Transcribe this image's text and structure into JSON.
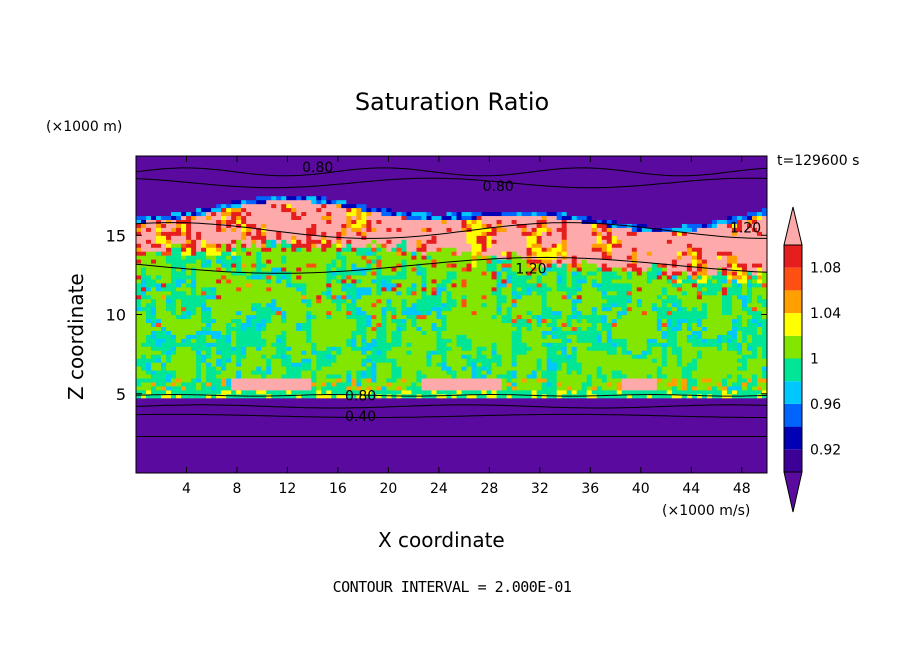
{
  "chart_data": {
    "type": "heatmap",
    "title": "Saturation Ratio",
    "xlabel": "X coordinate",
    "ylabel": "Z coordinate",
    "x_unit": "(×1000 m/s)",
    "y_unit": "(×1000 m)",
    "time_label": "t=129600 s",
    "footer": "CONTOUR INTERVAL = 2.000E-01",
    "xlim": [
      0,
      50
    ],
    "ylim": [
      0,
      20
    ],
    "x_ticks": [
      "4",
      "8",
      "12",
      "16",
      "20",
      "24",
      "28",
      "32",
      "36",
      "40",
      "44",
      "48"
    ],
    "x_tick_values": [
      4,
      8,
      12,
      16,
      20,
      24,
      28,
      32,
      36,
      40,
      44,
      48
    ],
    "y_ticks": [
      "5",
      "10",
      "15"
    ],
    "y_tick_values": [
      5,
      10,
      15
    ],
    "colorbar": {
      "labels": [
        "0.92",
        "0.96",
        "1",
        "1.04",
        "1.08"
      ],
      "label_values": [
        0.92,
        0.96,
        1.0,
        1.04,
        1.08
      ],
      "levels": [
        0.9,
        0.92,
        0.94,
        0.96,
        0.98,
        1.0,
        1.02,
        1.04,
        1.06,
        1.08,
        1.1
      ],
      "colors": [
        "#5a0a9e",
        "#3c0096",
        "#0000b4",
        "#0064ff",
        "#00c8ff",
        "#00e696",
        "#82e600",
        "#ffff00",
        "#ffa000",
        "#ff5014",
        "#e61e1e",
        "#ffaaaa"
      ]
    },
    "contour_labels": [
      {
        "text": "0.80",
        "x": 14.4,
        "z": 19.3
      },
      {
        "text": "0.80",
        "x": 28.7,
        "z": 18.1
      },
      {
        "text": "1.20",
        "x": 48.3,
        "z": 15.5
      },
      {
        "text": "1.20",
        "x": 31.3,
        "z": 12.9
      },
      {
        "text": "0.80",
        "x": 17.8,
        "z": 4.9
      },
      {
        "text": "0.40",
        "x": 17.8,
        "z": 3.6
      }
    ]
  }
}
